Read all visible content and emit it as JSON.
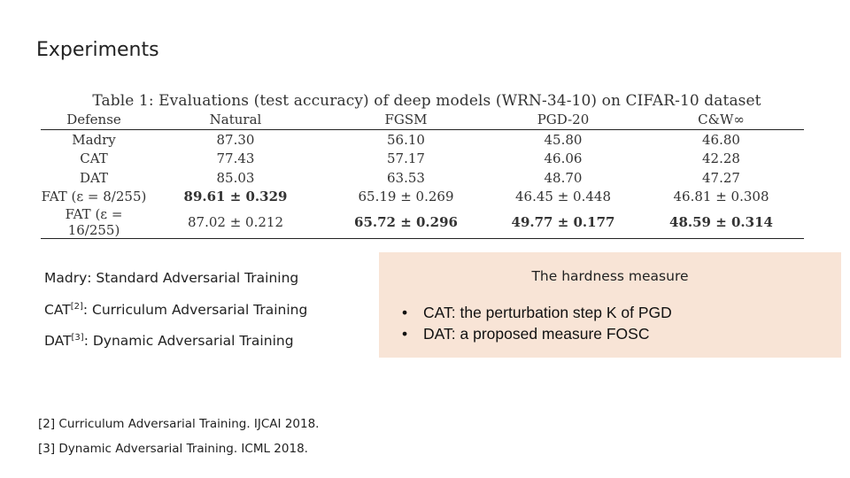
{
  "slide": {
    "title": "Experiments"
  },
  "table": {
    "caption": "Table 1: Evaluations (test accuracy) of deep models (WRN-34-10) on CIFAR-10 dataset",
    "headers": [
      "Defense",
      "Natural",
      "FGSM",
      "PGD-20",
      "C&W∞"
    ],
    "rows": [
      [
        "Madry",
        "87.30",
        "56.10",
        "45.80",
        "46.80"
      ],
      [
        "CAT",
        "77.43",
        "57.17",
        "46.06",
        "42.28"
      ],
      [
        "DAT",
        "85.03",
        "63.53",
        "48.70",
        "47.27"
      ],
      [
        "FAT (ε = 8/255)",
        "89.61 ± 0.329",
        "65.19 ± 0.269",
        "46.45 ± 0.448",
        "46.81 ± 0.308"
      ],
      [
        "FAT (ε = 16/255)",
        "87.02 ± 0.212",
        "65.72 ± 0.296",
        "49.77 ± 0.177",
        "48.59 ± 0.314"
      ]
    ],
    "bold_cells": [
      [
        3,
        1
      ],
      [
        4,
        2
      ],
      [
        4,
        3
      ],
      [
        4,
        4
      ]
    ]
  },
  "definitions": [
    {
      "name": "Madry",
      "sup": "",
      "text": ":  Standard  Adversarial  Training"
    },
    {
      "name": "CAT",
      "sup": "[2]",
      "text": ": Curriculum Adversarial Training"
    },
    {
      "name": "DAT",
      "sup": "[3]",
      "text": ": Dynamic Adversarial Training"
    }
  ],
  "references": [
    "[2] Curriculum Adversarial Training. IJCAI 2018.",
    "[3] Dynamic Adversarial Training. ICML 2018."
  ],
  "hardness": {
    "title": "The hardness measure",
    "bullets": [
      "CAT: the perturbation step K of PGD",
      "DAT: a proposed measure FOSC"
    ],
    "bullet_symbol": "•",
    "background": "#f8e4d6"
  }
}
